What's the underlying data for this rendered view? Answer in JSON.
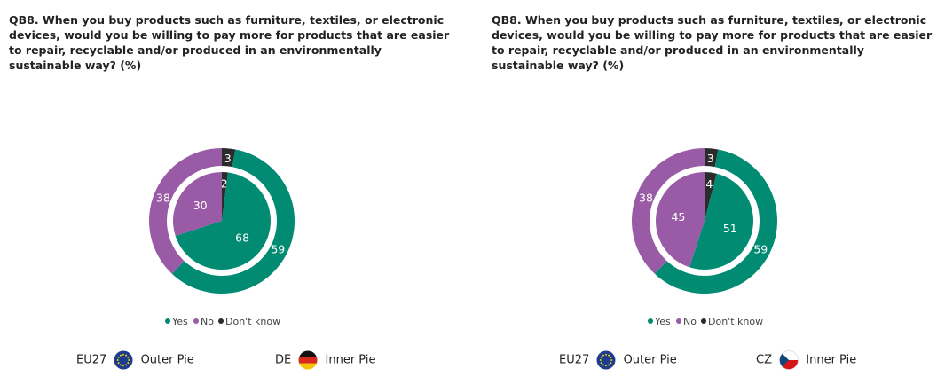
{
  "colors": {
    "yes": "#008B72",
    "no": "#9A5BA6",
    "dont_know": "#2B2B2B"
  },
  "panels": [
    {
      "title": "QB8. When you buy products such as furniture, textiles, or electronic devices, would you be willing to pay more for products that are easier to repair, recyclable and/or produced in an environmentally sustainable way? (%)",
      "legend": {
        "yes": "Yes",
        "no": "No",
        "dont_know": "Don't know"
      },
      "key": {
        "outer_code": "EU27",
        "outer_flag_icon": "eu-flag-icon",
        "outer_label": "Outer Pie",
        "inner_code": "DE",
        "inner_flag_icon": "germany-flag-icon",
        "inner_label": "Inner Pie"
      }
    },
    {
      "title": "QB8. When you buy products such as furniture, textiles, or electronic devices, would you be willing to pay more for products that are easier to repair, recyclable and/or produced in an environmentally sustainable way? (%)",
      "legend": {
        "yes": "Yes",
        "no": "No",
        "dont_know": "Don't know"
      },
      "key": {
        "outer_code": "EU27",
        "outer_flag_icon": "eu-flag-icon",
        "outer_label": "Outer Pie",
        "inner_code": "CZ",
        "inner_flag_icon": "czech-flag-icon",
        "inner_label": "Inner Pie"
      }
    }
  ],
  "chart_data": [
    {
      "type": "pie",
      "categories": [
        "Yes",
        "No",
        "Don't know"
      ],
      "series": [
        {
          "name": "EU27",
          "values": [
            59,
            38,
            3
          ]
        },
        {
          "name": "DE",
          "values": [
            68,
            30,
            2
          ]
        }
      ]
    },
    {
      "type": "pie",
      "categories": [
        "Yes",
        "No",
        "Don't know"
      ],
      "series": [
        {
          "name": "EU27",
          "values": [
            59,
            38,
            3
          ]
        },
        {
          "name": "CZ",
          "values": [
            51,
            45,
            4
          ]
        }
      ]
    }
  ]
}
